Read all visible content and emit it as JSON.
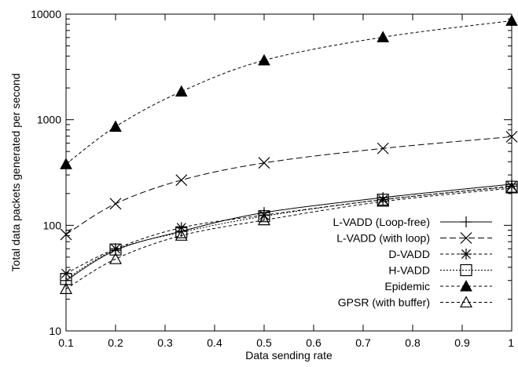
{
  "chart_data": {
    "type": "line",
    "title": "",
    "xlabel": "Data sending rate",
    "ylabel": "Total data packets generated per second",
    "xlim": [
      0.1,
      1.0
    ],
    "ylim": [
      10,
      10000
    ],
    "yscale": "log",
    "grid": false,
    "legend_position": "bottom-right",
    "x_ticks": [
      0.1,
      0.2,
      0.3,
      0.4,
      0.5,
      0.6,
      0.7,
      0.8,
      0.9,
      1.0
    ],
    "x_tick_labels": [
      "0.1",
      "0.2",
      "0.3",
      "0.4",
      "0.5",
      "0.6",
      "0.7",
      "0.8",
      "0.9",
      "1"
    ],
    "y_ticks": [
      10,
      100,
      1000,
      10000
    ],
    "y_tick_labels": [
      "10",
      "100",
      "1000",
      "10000"
    ],
    "x": [
      0.1,
      0.2,
      0.333,
      0.5,
      0.74,
      1.0
    ],
    "series": [
      {
        "name": "L-VADD (Loop-free)",
        "marker": "plus",
        "dash": "solid",
        "values": [
          30,
          58,
          88,
          132,
          183,
          245
        ]
      },
      {
        "name": "L-VADD (with loop)",
        "marker": "cross",
        "dash": "long-dash",
        "values": [
          82,
          160,
          268,
          390,
          535,
          690
        ]
      },
      {
        "name": "D-VADD",
        "marker": "star",
        "dash": "short-dash",
        "values": [
          35,
          60,
          95,
          125,
          175,
          235
        ]
      },
      {
        "name": "H-VADD",
        "marker": "square",
        "dash": "dotted",
        "values": [
          31,
          59,
          86,
          122,
          175,
          232
        ]
      },
      {
        "name": "Epidemic",
        "marker": "filled-triangle",
        "dash": "dashed",
        "values": [
          380,
          860,
          1850,
          3650,
          6050,
          8650
        ]
      },
      {
        "name": "GPSR (with buffer)",
        "marker": "open-triangle",
        "dash": "dashed",
        "values": [
          25,
          48,
          80,
          112,
          168,
          225
        ]
      }
    ]
  }
}
